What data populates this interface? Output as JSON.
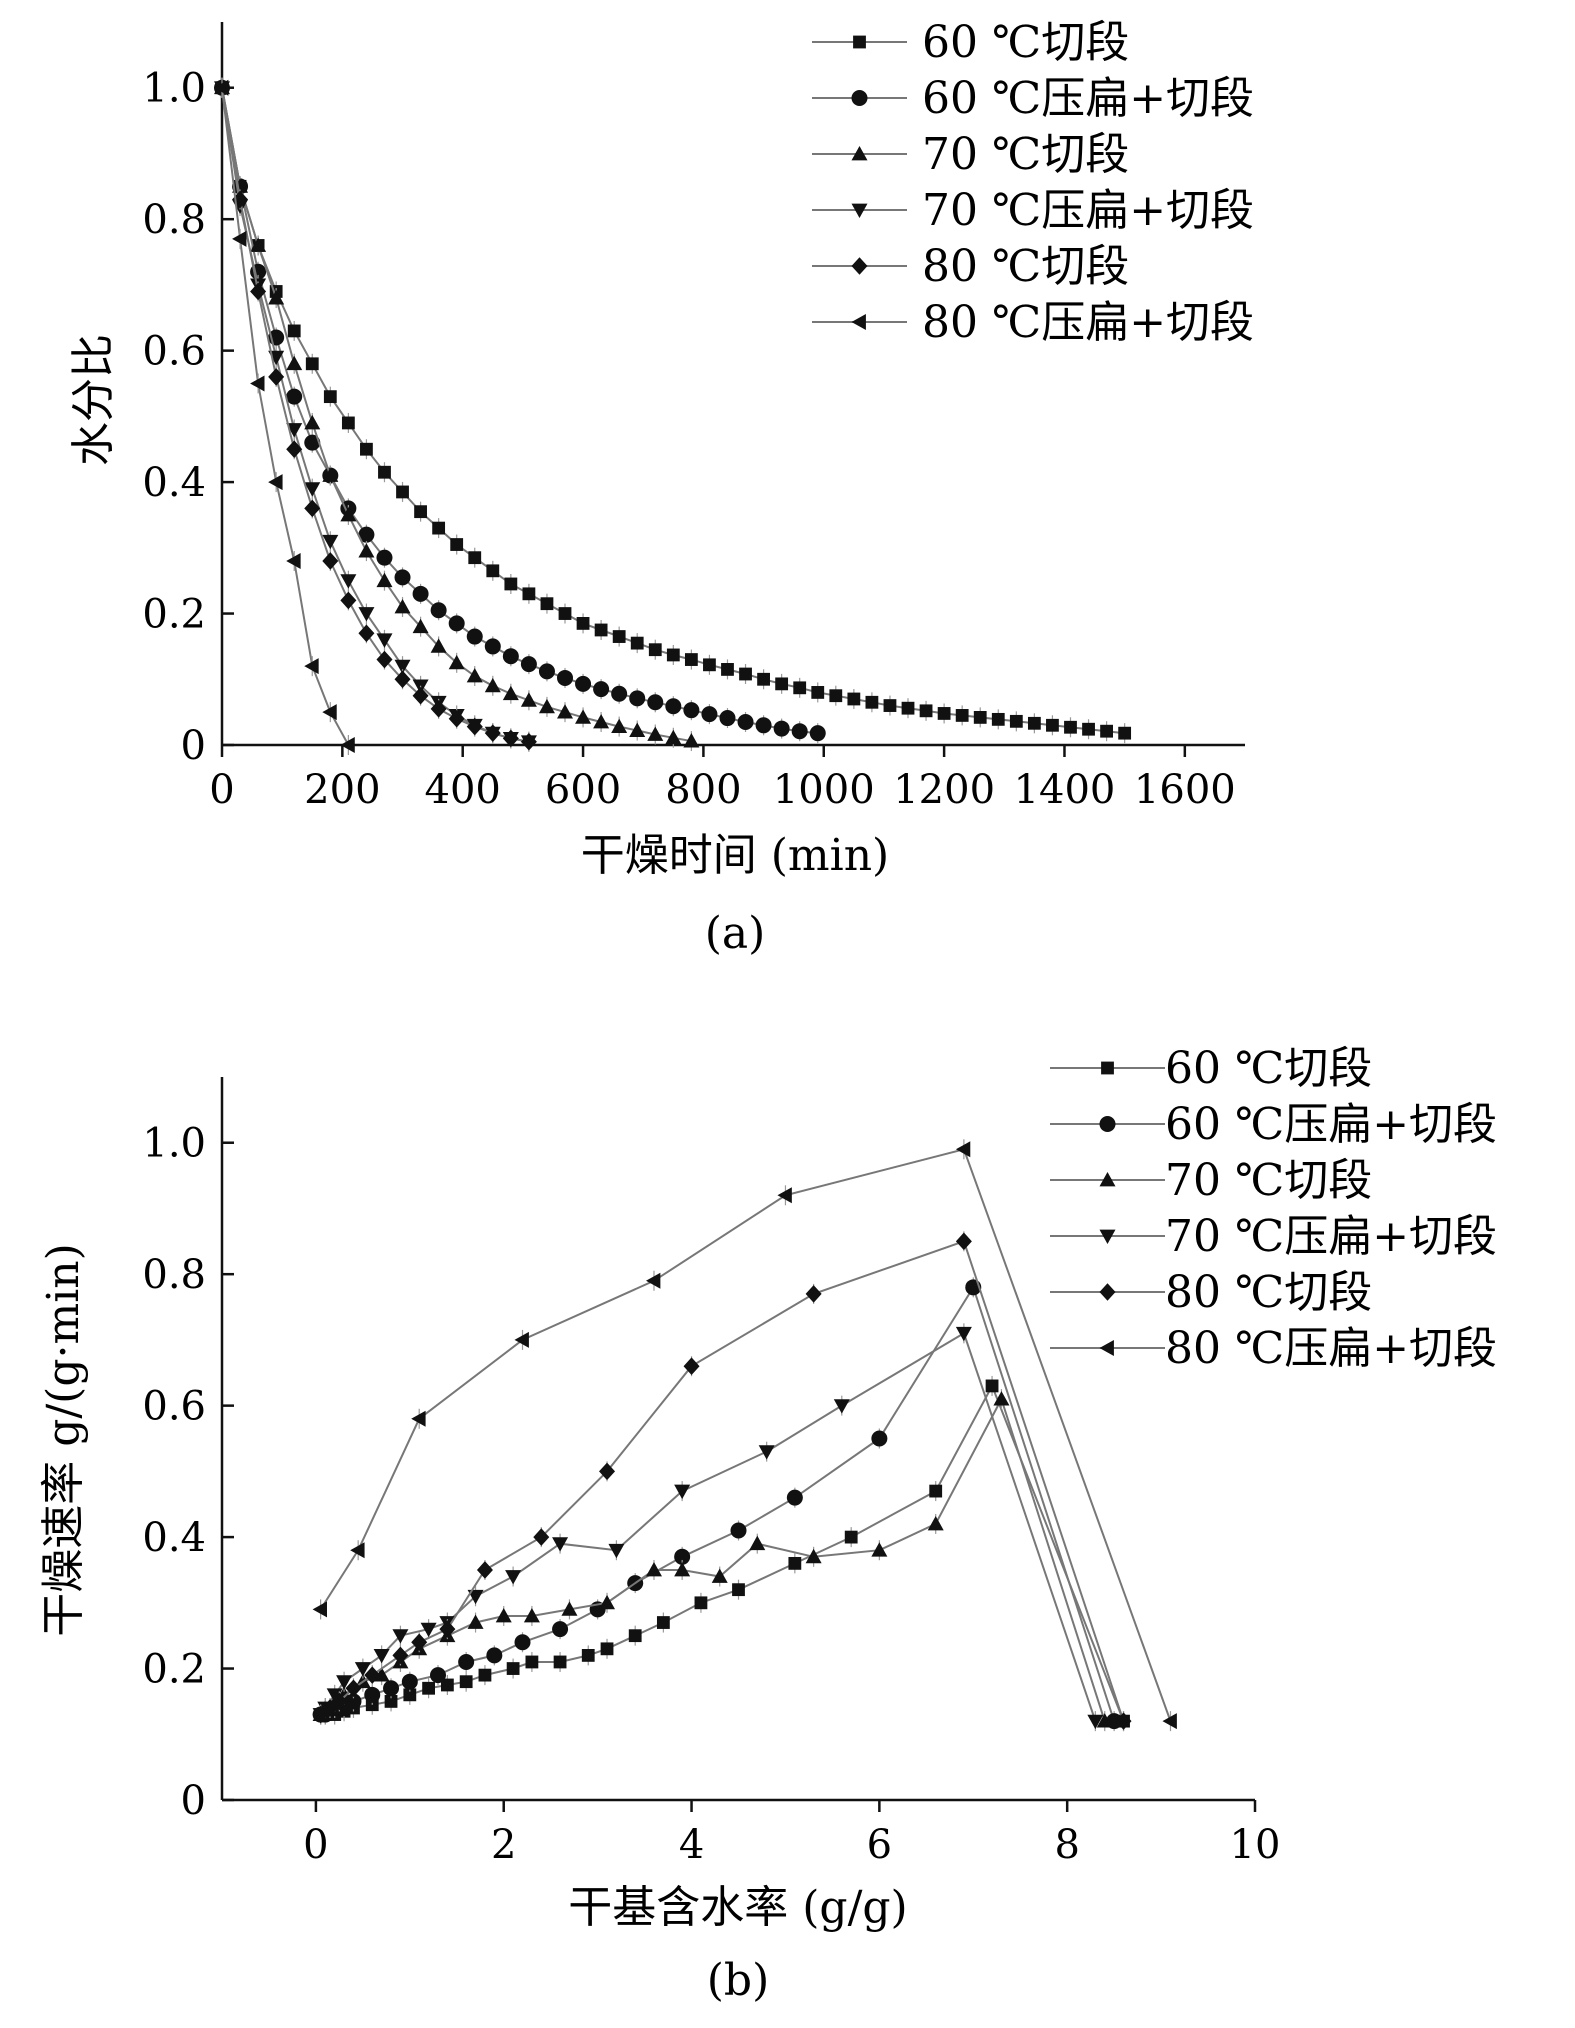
{
  "chart_data": [
    {
      "type": "line",
      "caption": "(a)",
      "xlabel": "干燥时间 (min)",
      "ylabel": "水分比",
      "xlim": [
        0,
        1700
      ],
      "ylim": [
        0,
        1.1
      ],
      "xticks": [
        0,
        200,
        400,
        600,
        800,
        1000,
        1200,
        1400,
        1600
      ],
      "xtick_labels": [
        "0",
        "200",
        "400",
        "600",
        "800",
        "1000",
        "1200",
        "1400",
        "1600"
      ],
      "yticks": [
        0,
        0.2,
        0.4,
        0.6,
        0.8,
        1.0
      ],
      "ytick_labels": [
        "0",
        "0.2",
        "0.4",
        "0.6",
        "0.8",
        "1.0"
      ],
      "legend_position": "top-right",
      "series": [
        {
          "name": "60 ℃切段",
          "marker": "square",
          "x": [
            0,
            30,
            60,
            90,
            120,
            150,
            180,
            210,
            240,
            270,
            300,
            330,
            360,
            390,
            420,
            450,
            480,
            510,
            540,
            570,
            600,
            630,
            660,
            690,
            720,
            750,
            780,
            810,
            840,
            870,
            900,
            930,
            960,
            990,
            1020,
            1050,
            1080,
            1110,
            1140,
            1170,
            1200,
            1230,
            1260,
            1290,
            1320,
            1350,
            1380,
            1410,
            1440,
            1470,
            1500
          ],
          "y": [
            1.0,
            0.85,
            0.76,
            0.69,
            0.63,
            0.58,
            0.53,
            0.49,
            0.45,
            0.415,
            0.385,
            0.355,
            0.33,
            0.305,
            0.285,
            0.265,
            0.245,
            0.23,
            0.215,
            0.2,
            0.185,
            0.175,
            0.165,
            0.155,
            0.145,
            0.137,
            0.13,
            0.122,
            0.115,
            0.108,
            0.1,
            0.093,
            0.087,
            0.08,
            0.075,
            0.07,
            0.065,
            0.06,
            0.056,
            0.052,
            0.048,
            0.045,
            0.042,
            0.039,
            0.036,
            0.033,
            0.03,
            0.027,
            0.024,
            0.021,
            0.018
          ]
        },
        {
          "name": "60 ℃压扁+切段",
          "marker": "circle",
          "x": [
            0,
            30,
            60,
            90,
            120,
            150,
            180,
            210,
            240,
            270,
            300,
            330,
            360,
            390,
            420,
            450,
            480,
            510,
            540,
            570,
            600,
            630,
            660,
            690,
            720,
            750,
            780,
            810,
            840,
            870,
            900,
            930,
            960,
            990
          ],
          "y": [
            1.0,
            0.85,
            0.72,
            0.62,
            0.53,
            0.46,
            0.41,
            0.36,
            0.32,
            0.285,
            0.255,
            0.23,
            0.205,
            0.185,
            0.165,
            0.15,
            0.135,
            0.123,
            0.112,
            0.102,
            0.093,
            0.085,
            0.078,
            0.071,
            0.065,
            0.059,
            0.053,
            0.047,
            0.041,
            0.035,
            0.03,
            0.025,
            0.021,
            0.018
          ]
        },
        {
          "name": "70 ℃切段",
          "marker": "triangle-up",
          "x": [
            0,
            30,
            60,
            90,
            120,
            150,
            180,
            210,
            240,
            270,
            300,
            330,
            360,
            390,
            420,
            450,
            480,
            510,
            540,
            570,
            600,
            630,
            660,
            690,
            720,
            750,
            780
          ],
          "y": [
            1.0,
            0.85,
            0.76,
            0.68,
            0.58,
            0.49,
            0.41,
            0.35,
            0.295,
            0.25,
            0.21,
            0.18,
            0.15,
            0.125,
            0.105,
            0.09,
            0.078,
            0.068,
            0.058,
            0.05,
            0.042,
            0.035,
            0.028,
            0.022,
            0.016,
            0.011,
            0.006
          ]
        },
        {
          "name": "70 ℃压扁+切段",
          "marker": "triangle-down",
          "x": [
            0,
            30,
            60,
            90,
            120,
            150,
            180,
            210,
            240,
            270,
            300,
            330,
            360,
            390,
            420,
            450,
            480,
            510
          ],
          "y": [
            1.0,
            0.82,
            0.7,
            0.59,
            0.48,
            0.39,
            0.31,
            0.25,
            0.2,
            0.16,
            0.12,
            0.09,
            0.065,
            0.045,
            0.03,
            0.018,
            0.01,
            0.005
          ]
        },
        {
          "name": "80 ℃切段",
          "marker": "diamond",
          "x": [
            0,
            30,
            60,
            90,
            120,
            150,
            180,
            210,
            240,
            270,
            300,
            330,
            360,
            390,
            420,
            450,
            480,
            510
          ],
          "y": [
            1.0,
            0.83,
            0.69,
            0.56,
            0.45,
            0.36,
            0.28,
            0.22,
            0.17,
            0.13,
            0.1,
            0.075,
            0.055,
            0.04,
            0.028,
            0.018,
            0.01,
            0.005
          ]
        },
        {
          "name": "80 ℃压扁+切段",
          "marker": "triangle-left",
          "x": [
            0,
            30,
            60,
            90,
            120,
            150,
            180,
            210
          ],
          "y": [
            1.0,
            0.77,
            0.55,
            0.4,
            0.28,
            0.12,
            0.05,
            0.0
          ]
        }
      ]
    },
    {
      "type": "line",
      "caption": "(b)",
      "xlabel": "干基含水率 (g/g)",
      "ylabel": "干燥速率 g/(g·min)",
      "xlim": [
        -1,
        10
      ],
      "ylim": [
        0,
        1.1
      ],
      "xticks": [
        0,
        2,
        4,
        6,
        8,
        10
      ],
      "xtick_labels": [
        "0",
        "2",
        "4",
        "6",
        "8",
        "10"
      ],
      "yticks": [
        0,
        0.2,
        0.4,
        0.6,
        0.8,
        1.0
      ],
      "ytick_labels": [
        "0",
        "0.2",
        "0.4",
        "0.6",
        "0.8",
        "1.0"
      ],
      "legend_position": "top-right",
      "series": [
        {
          "name": "60 ℃切段",
          "marker": "square",
          "x": [
            8.6,
            7.2,
            6.6,
            5.7,
            5.1,
            4.5,
            4.1,
            3.7,
            3.4,
            3.1,
            2.9,
            2.6,
            2.3,
            2.1,
            1.8,
            1.6,
            1.4,
            1.2,
            1.0,
            0.8,
            0.6,
            0.4,
            0.3,
            0.2,
            0.1,
            0.05
          ],
          "y": [
            0.12,
            0.63,
            0.47,
            0.4,
            0.36,
            0.32,
            0.3,
            0.27,
            0.25,
            0.23,
            0.22,
            0.21,
            0.21,
            0.2,
            0.19,
            0.18,
            0.175,
            0.17,
            0.16,
            0.15,
            0.145,
            0.14,
            0.135,
            0.13,
            0.13,
            0.13
          ]
        },
        {
          "name": "60 ℃压扁+切段",
          "marker": "circle",
          "x": [
            8.5,
            7.0,
            6.0,
            5.1,
            4.5,
            3.9,
            3.4,
            3.0,
            2.6,
            2.2,
            1.9,
            1.6,
            1.3,
            1.0,
            0.8,
            0.6,
            0.4,
            0.3,
            0.2,
            0.1,
            0.05
          ],
          "y": [
            0.12,
            0.78,
            0.55,
            0.46,
            0.41,
            0.37,
            0.33,
            0.29,
            0.26,
            0.24,
            0.22,
            0.21,
            0.19,
            0.18,
            0.17,
            0.16,
            0.15,
            0.14,
            0.14,
            0.13,
            0.13
          ]
        },
        {
          "name": "70 ℃切段",
          "marker": "triangle-up",
          "x": [
            8.4,
            7.3,
            6.6,
            6.0,
            5.3,
            4.7,
            4.3,
            3.9,
            3.6,
            3.1,
            2.7,
            2.3,
            2.0,
            1.7,
            1.4,
            1.1,
            0.9,
            0.7,
            0.5,
            0.3,
            0.2,
            0.1,
            0.05
          ],
          "y": [
            0.12,
            0.61,
            0.42,
            0.38,
            0.37,
            0.39,
            0.34,
            0.35,
            0.35,
            0.3,
            0.29,
            0.28,
            0.28,
            0.27,
            0.25,
            0.23,
            0.21,
            0.19,
            0.18,
            0.16,
            0.15,
            0.14,
            0.13
          ]
        },
        {
          "name": "70 ℃压扁+切段",
          "marker": "triangle-down",
          "x": [
            8.3,
            6.9,
            5.6,
            4.8,
            3.9,
            3.2,
            2.6,
            2.1,
            1.7,
            1.4,
            1.2,
            0.9,
            0.7,
            0.5,
            0.3,
            0.2,
            0.1,
            0.05
          ],
          "y": [
            0.12,
            0.71,
            0.6,
            0.53,
            0.47,
            0.38,
            0.39,
            0.34,
            0.31,
            0.27,
            0.26,
            0.25,
            0.22,
            0.2,
            0.18,
            0.16,
            0.14,
            0.13
          ]
        },
        {
          "name": "80 ℃切段",
          "marker": "diamond",
          "x": [
            8.6,
            6.9,
            5.3,
            4.0,
            3.1,
            2.4,
            1.8,
            1.4,
            1.1,
            0.9,
            0.6,
            0.4,
            0.25,
            0.15,
            0.05
          ],
          "y": [
            0.12,
            0.85,
            0.77,
            0.66,
            0.5,
            0.4,
            0.35,
            0.26,
            0.24,
            0.22,
            0.19,
            0.17,
            0.15,
            0.14,
            0.13
          ]
        },
        {
          "name": "80 ℃压扁+切段",
          "marker": "triangle-left",
          "x": [
            9.1,
            6.9,
            5.0,
            3.6,
            2.2,
            1.1,
            0.45,
            0.05
          ],
          "y": [
            0.12,
            0.99,
            0.92,
            0.79,
            0.7,
            0.58,
            0.38,
            0.29
          ]
        }
      ]
    }
  ]
}
